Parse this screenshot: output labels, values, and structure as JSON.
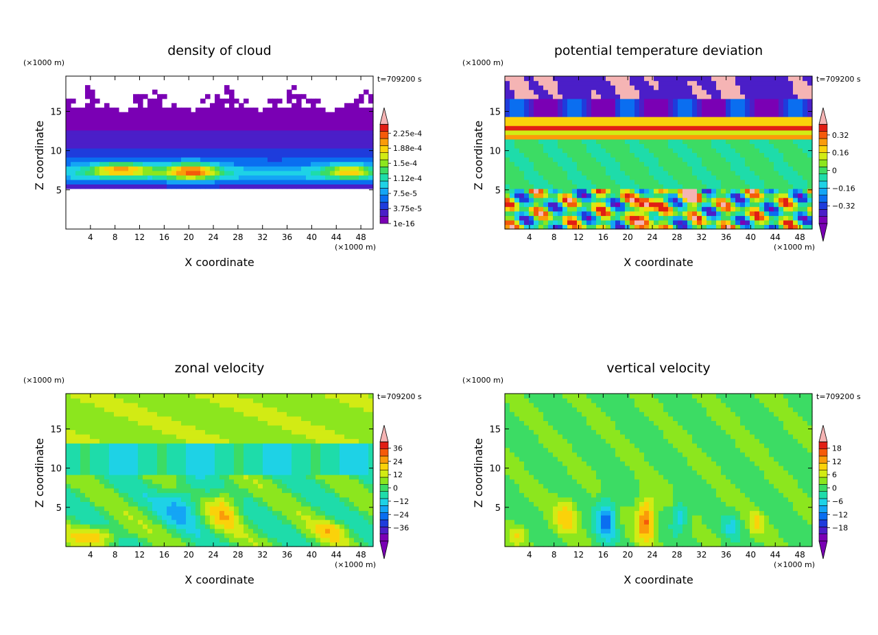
{
  "chart_data": [
    {
      "type": "heatmap",
      "title": "density of cloud",
      "xlabel": "X coordinate",
      "ylabel": "Z coordinate",
      "x_unit": "(×1000 m)",
      "y_unit": "(×1000 m)",
      "time_label": "t=709200 s",
      "xlim": [
        0,
        50
      ],
      "ylim": [
        0,
        19.5
      ],
      "x_ticks": [
        "4",
        "8",
        "12",
        "16",
        "20",
        "24",
        "28",
        "32",
        "36",
        "40",
        "44",
        "48"
      ],
      "y_ticks": [
        "5",
        "10",
        "15"
      ],
      "colorbar_labels": [
        "1e-16",
        "3.75e-5",
        "7.5e-5",
        "1.12e-4",
        "1.5e-4",
        "1.88e-4",
        "2.25e-4"
      ],
      "colorbar_range": [
        0,
        0.00026
      ],
      "field": "cloud"
    },
    {
      "type": "heatmap",
      "title": "potential temperature deviation",
      "xlabel": "X coordinate",
      "ylabel": "Z coordinate",
      "x_unit": "(×1000 m)",
      "y_unit": "(×1000 m)",
      "time_label": "t=709200 s",
      "xlim": [
        0,
        50
      ],
      "ylim": [
        0,
        19.5
      ],
      "x_ticks": [
        "4",
        "8",
        "12",
        "16",
        "20",
        "24",
        "28",
        "32",
        "36",
        "40",
        "44",
        "48"
      ],
      "y_ticks": [
        "5",
        "10",
        "15"
      ],
      "colorbar_labels": [
        "−0.32",
        "−0.16",
        "0",
        "0.16",
        "0.32"
      ],
      "colorbar_range": [
        -0.4,
        0.4
      ],
      "field": "theta"
    },
    {
      "type": "heatmap",
      "title": "zonal velocity",
      "xlabel": "X coordinate",
      "ylabel": "Z coordinate",
      "x_unit": "(×1000 m)",
      "y_unit": "(×1000 m)",
      "time_label": "t=709200 s",
      "xlim": [
        0,
        50
      ],
      "ylim": [
        0,
        19.5
      ],
      "x_ticks": [
        "4",
        "8",
        "12",
        "16",
        "20",
        "24",
        "28",
        "32",
        "36",
        "40",
        "44",
        "48"
      ],
      "y_ticks": [
        "5",
        "10",
        "15"
      ],
      "colorbar_labels": [
        "−36",
        "−24",
        "−12",
        "0",
        "12",
        "24",
        "36"
      ],
      "colorbar_range": [
        -44,
        44
      ],
      "field": "zonal"
    },
    {
      "type": "heatmap",
      "title": "vertical velocity",
      "xlabel": "X coordinate",
      "ylabel": "Z coordinate",
      "x_unit": "(×1000 m)",
      "y_unit": "(×1000 m)",
      "time_label": "t=709200 s",
      "xlim": [
        0,
        50
      ],
      "ylim": [
        0,
        19.5
      ],
      "x_ticks": [
        "4",
        "8",
        "12",
        "16",
        "20",
        "24",
        "28",
        "32",
        "36",
        "40",
        "44",
        "48"
      ],
      "y_ticks": [
        "5",
        "10",
        "15"
      ],
      "colorbar_labels": [
        "−18",
        "−12",
        "−6",
        "0",
        "6",
        "12",
        "18"
      ],
      "colorbar_range": [
        -22,
        22
      ],
      "field": "vertical"
    }
  ],
  "colors": {
    "palette": [
      "#7a00b4",
      "#4b1ec8",
      "#1e3cdc",
      "#0a6ef0",
      "#14a5f5",
      "#1ed2e6",
      "#1edcaa",
      "#3cdc64",
      "#8ce61e",
      "#d2eb14",
      "#fad20a",
      "#fa9b0a",
      "#f55a0a",
      "#e11e14",
      "#f5b4b4"
    ],
    "frame": "#000000",
    "background": "#ffffff"
  }
}
